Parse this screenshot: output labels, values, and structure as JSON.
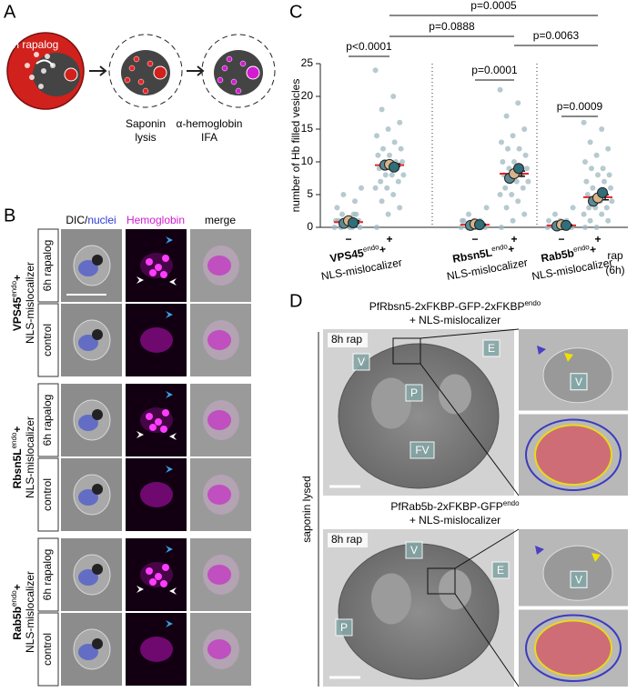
{
  "panel_letters": [
    "A",
    "B",
    "C",
    "D"
  ],
  "panel_a": {
    "cell_label": "6h rapalog",
    "step1": [
      "Saponin",
      "lysis"
    ],
    "step2": [
      "α-hemoglobin",
      "IFA"
    ]
  },
  "panel_b": {
    "headers": {
      "dic": "DIC/",
      "nuclei": "nuclei",
      "hemoglobin": "Hemoglobin",
      "merge": "merge"
    },
    "groups": [
      {
        "name": "VPS45",
        "sup": "endo",
        "suffix": "+",
        "line2": "NLS-mislocalizer",
        "rows": [
          "6h rapalog",
          "control"
        ]
      },
      {
        "name": "Rbsn5L",
        "sup": "endo",
        "suffix": "+",
        "line2": "NLS-mislocalizer",
        "rows": [
          "6h rapalog",
          "control"
        ]
      },
      {
        "name": "Rab5b",
        "sup": "endo",
        "suffix": "+",
        "line2": "NLS-mislocalizer",
        "rows": [
          "6h rapalog",
          "control"
        ]
      }
    ]
  },
  "chart_data": {
    "type": "strip",
    "ylabel": "number of Hb filled vesicles",
    "categories": [
      "−",
      "+",
      "−",
      "+",
      "−",
      "+"
    ],
    "groups": [
      {
        "name": "VPS45",
        "sup": "endo",
        "suffix": "+",
        "line2": "NLS-mislocalizer"
      },
      {
        "name": "Rbsn5L",
        "sup": "endo",
        "suffix": "+",
        "line2": "NLS-mislocalizer"
      },
      {
        "name": "Rab5b",
        "sup": "endo",
        "suffix": "+",
        "line2": "NLS-mislocalizer"
      }
    ],
    "x_note": [
      "rap",
      "(6h)"
    ],
    "ylim": [
      0,
      25
    ],
    "yticks": [
      0,
      5,
      10,
      15,
      20,
      25
    ],
    "points_color": "#9db8c0",
    "points": [
      [
        0,
        0,
        0,
        1,
        1,
        1,
        2,
        2,
        0,
        1,
        3,
        4,
        5,
        6,
        0,
        1,
        2
      ],
      [
        24,
        20,
        18,
        16,
        15,
        14,
        13,
        12,
        12,
        11,
        11,
        10,
        10,
        10,
        9,
        9,
        9,
        8,
        8,
        8,
        7,
        7,
        6,
        6,
        5,
        4,
        3,
        2,
        0
      ],
      [
        0,
        0,
        0,
        0,
        1,
        1,
        1,
        2,
        3,
        0,
        1
      ],
      [
        21,
        19,
        17,
        15,
        14,
        13,
        12,
        12,
        11,
        10,
        10,
        9,
        9,
        9,
        8,
        8,
        8,
        7,
        7,
        7,
        6,
        6,
        5,
        5,
        4,
        3,
        2,
        1,
        0
      ],
      [
        0,
        0,
        0,
        0,
        1,
        1,
        1,
        2,
        3,
        0
      ],
      [
        16,
        15,
        13,
        12,
        11,
        10,
        9,
        9,
        8,
        8,
        7,
        7,
        6,
        6,
        5,
        5,
        5,
        4,
        4,
        4,
        3,
        3,
        3,
        2,
        2,
        1,
        1,
        0,
        0
      ]
    ],
    "series": [
      {
        "color": "#5b8a96",
        "values": [
          0.6,
          9.5,
          0.3,
          7.5,
          0.2,
          4.0
        ]
      },
      {
        "color": "#d9b48a",
        "values": [
          1.0,
          9.6,
          0.5,
          8.2,
          0.4,
          4.5
        ]
      },
      {
        "color": "#2f6f7a",
        "values": [
          0.7,
          9.2,
          0.4,
          9.0,
          0.3,
          5.3
        ]
      }
    ],
    "mean": {
      "color": "#e3262b",
      "values": [
        0.8,
        9.5,
        0.4,
        8.2,
        0.3,
        4.6
      ]
    },
    "error": [
      0.2,
      0.2,
      0.1,
      0.4,
      0.1,
      0.4
    ],
    "annotations": [
      "p<0.0001",
      "p=0.0888",
      "p=0.0005",
      "p=0.0001",
      "p=0.0063",
      "p=0.0009"
    ]
  },
  "panel_d": {
    "side_label": "saponin lysed",
    "top": {
      "title": "PfRbsn5-2xFKBP-GFP-2xFKBP",
      "sup": "endo",
      "line2": "+ NLS-mislocalizer",
      "rap": "8h rap",
      "labels": [
        "V",
        "E",
        "P",
        "FV"
      ],
      "zoom_label": "V"
    },
    "bottom": {
      "title": "PfRab5b-2xFKBP-GFP",
      "sup": "endo",
      "line2": "+ NLS-mislocalizer",
      "rap": "8h rap",
      "labels": [
        "V",
        "E",
        "P"
      ],
      "zoom_label": "V"
    }
  }
}
